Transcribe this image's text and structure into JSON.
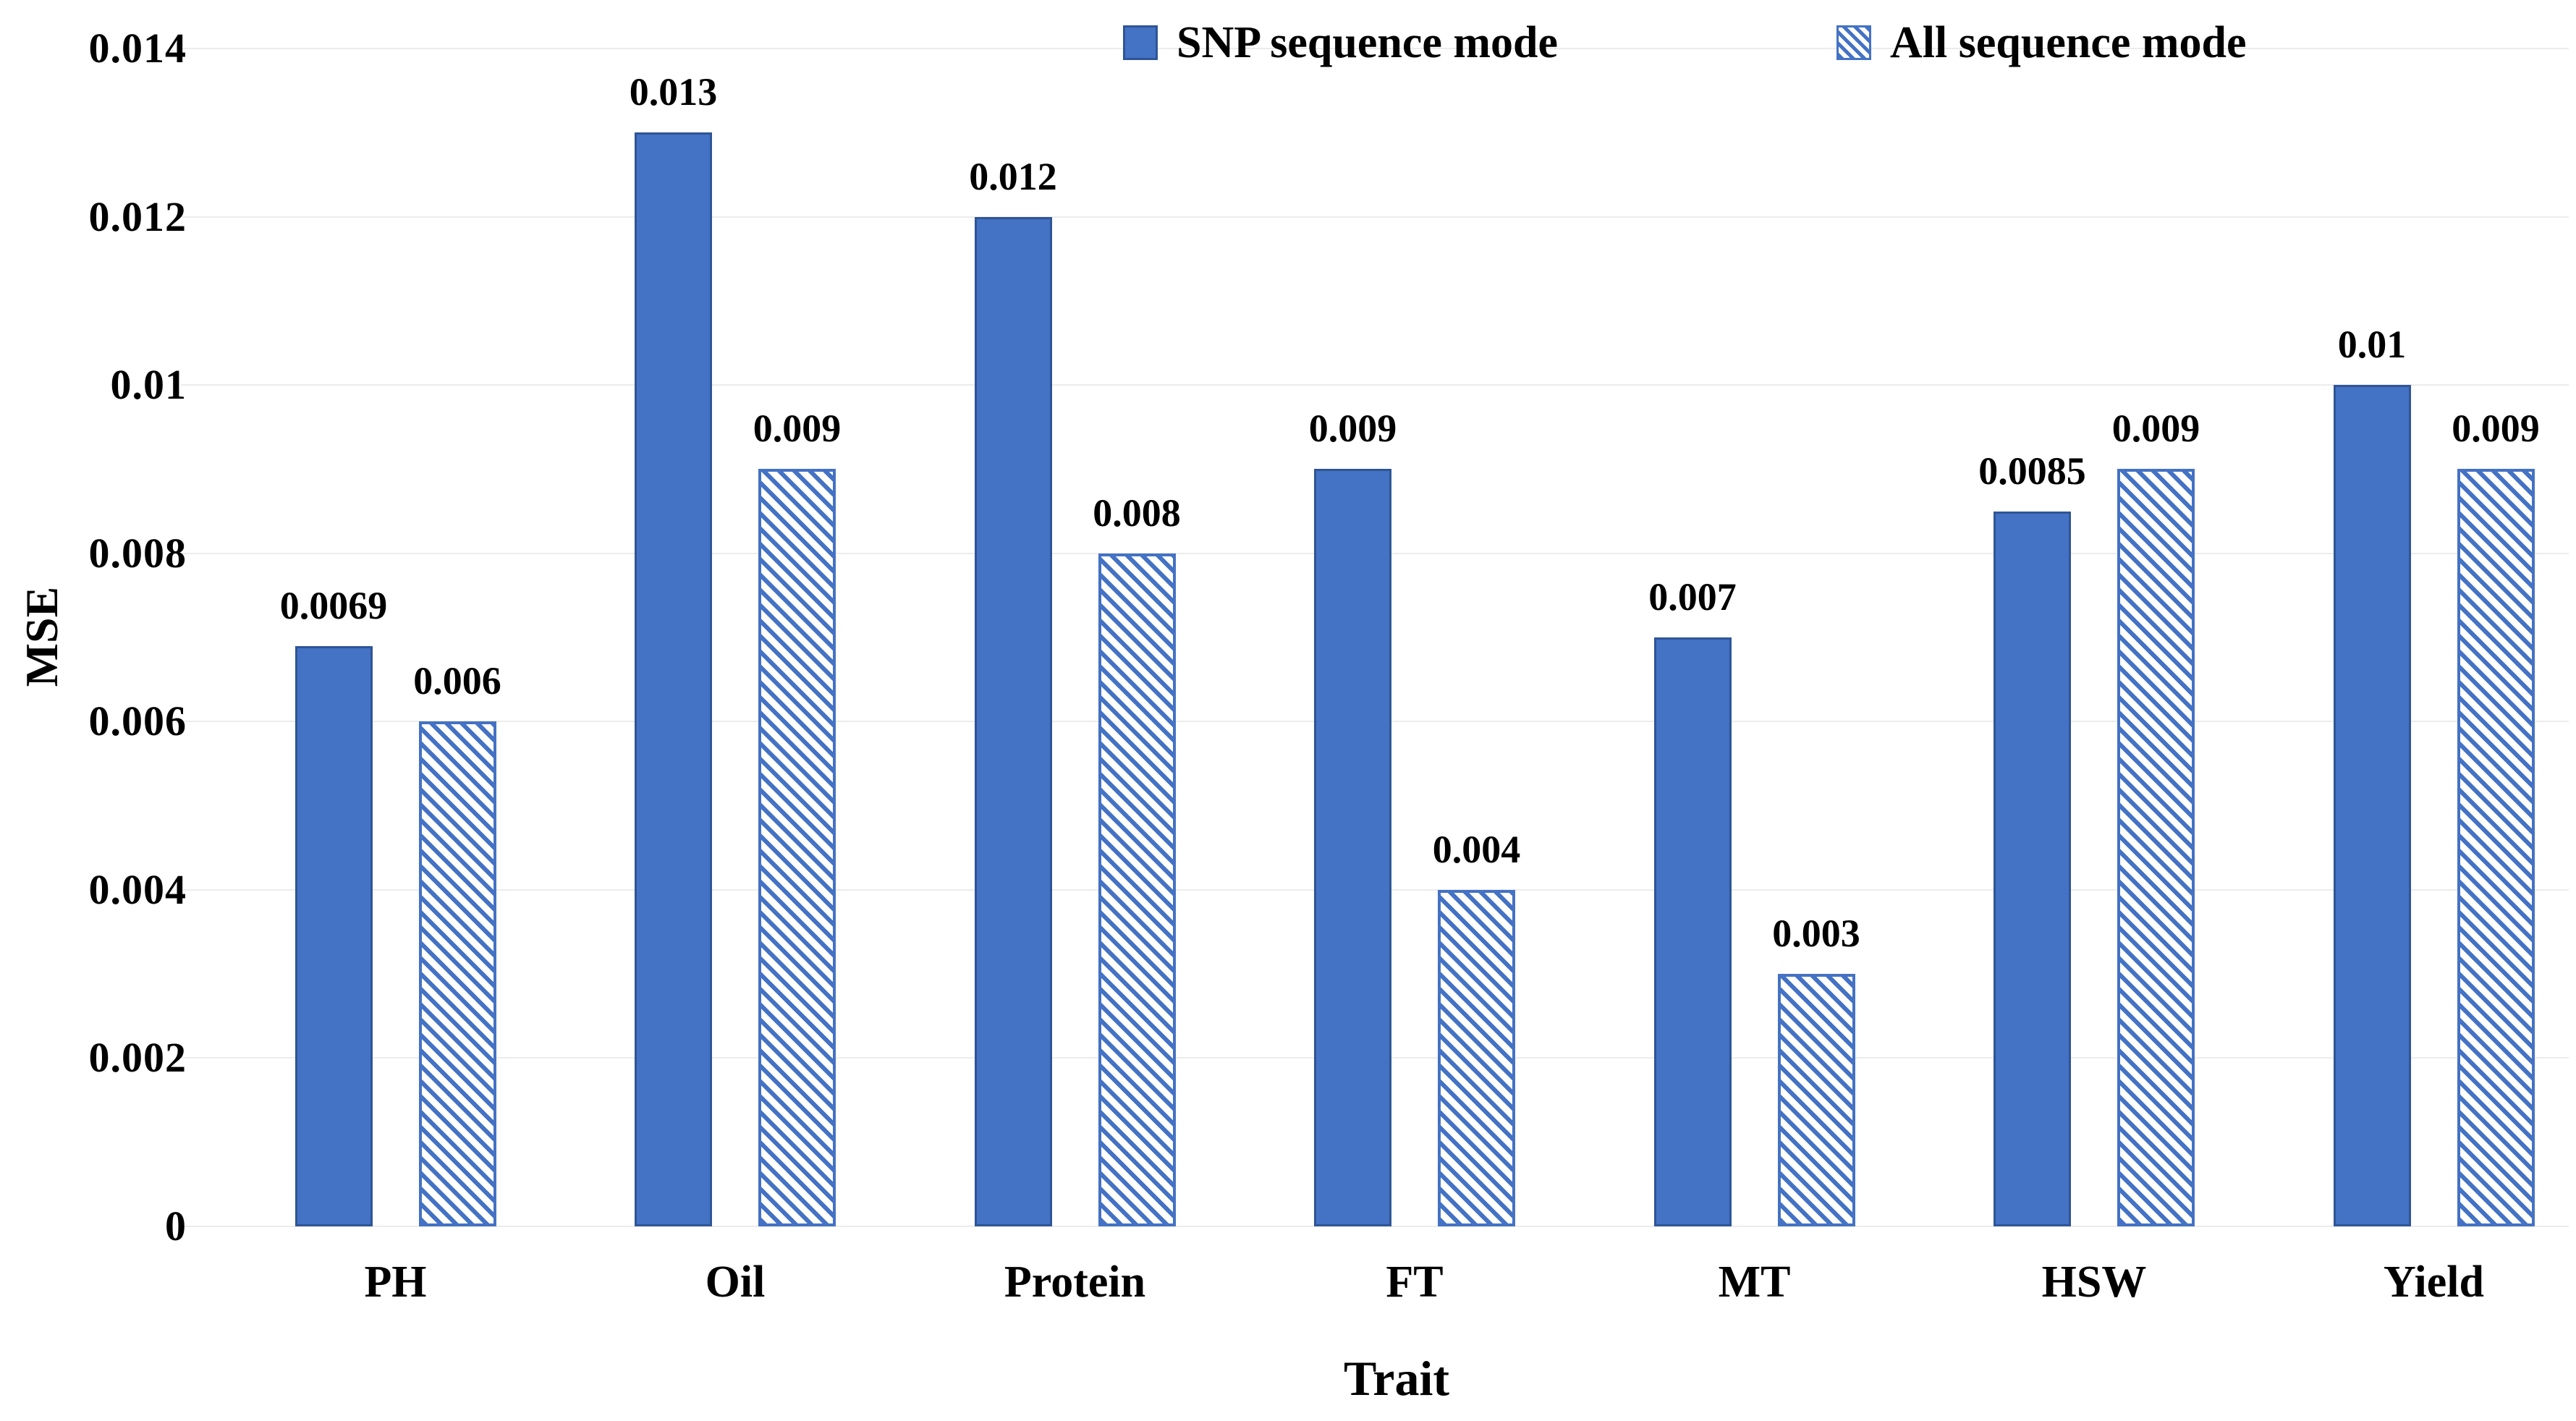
{
  "chart_data": {
    "type": "bar",
    "title": "",
    "xlabel": "Trait",
    "ylabel": "MSE",
    "categories": [
      "PH",
      "Oil",
      "Protein",
      "FT",
      "MT",
      "HSW",
      "Yield"
    ],
    "series": [
      {
        "name": "SNP sequence mode",
        "style": "solid",
        "values": [
          0.0069,
          0.013,
          0.012,
          0.009,
          0.007,
          0.0085,
          0.01
        ],
        "labels": [
          "0.0069",
          "0.013",
          "0.012",
          "0.009",
          "0.007",
          "0.0085",
          "0.01"
        ]
      },
      {
        "name": "All sequence mode",
        "style": "hatched",
        "values": [
          0.006,
          0.009,
          0.008,
          0.004,
          0.003,
          0.009,
          0.009
        ],
        "labels": [
          "0.006",
          "0.009",
          "0.008",
          "0.004",
          "0.003",
          "0.009",
          "0.009"
        ]
      }
    ],
    "yticks": [
      {
        "value": 0.014,
        "label": "0.014"
      },
      {
        "value": 0.012,
        "label": "0.012"
      },
      {
        "value": 0.01,
        "label": "0.01"
      },
      {
        "value": 0.008,
        "label": "0.008"
      },
      {
        "value": 0.006,
        "label": "0.006"
      },
      {
        "value": 0.004,
        "label": "0.004"
      },
      {
        "value": 0.002,
        "label": "0.002"
      },
      {
        "value": 0,
        "label": "0"
      }
    ],
    "ylim": [
      0,
      0.014
    ],
    "grid": "horizontal",
    "legend_position": "top-center",
    "colors": {
      "solid_fill": "#4472C4",
      "solid_border": "#2F5597",
      "hatch_stripe": "#4472C4",
      "hatch_bg": "#FFFFFF",
      "hatch_border": "#4472C4",
      "gridline": "#ECECEC",
      "text": "#000000"
    }
  }
}
